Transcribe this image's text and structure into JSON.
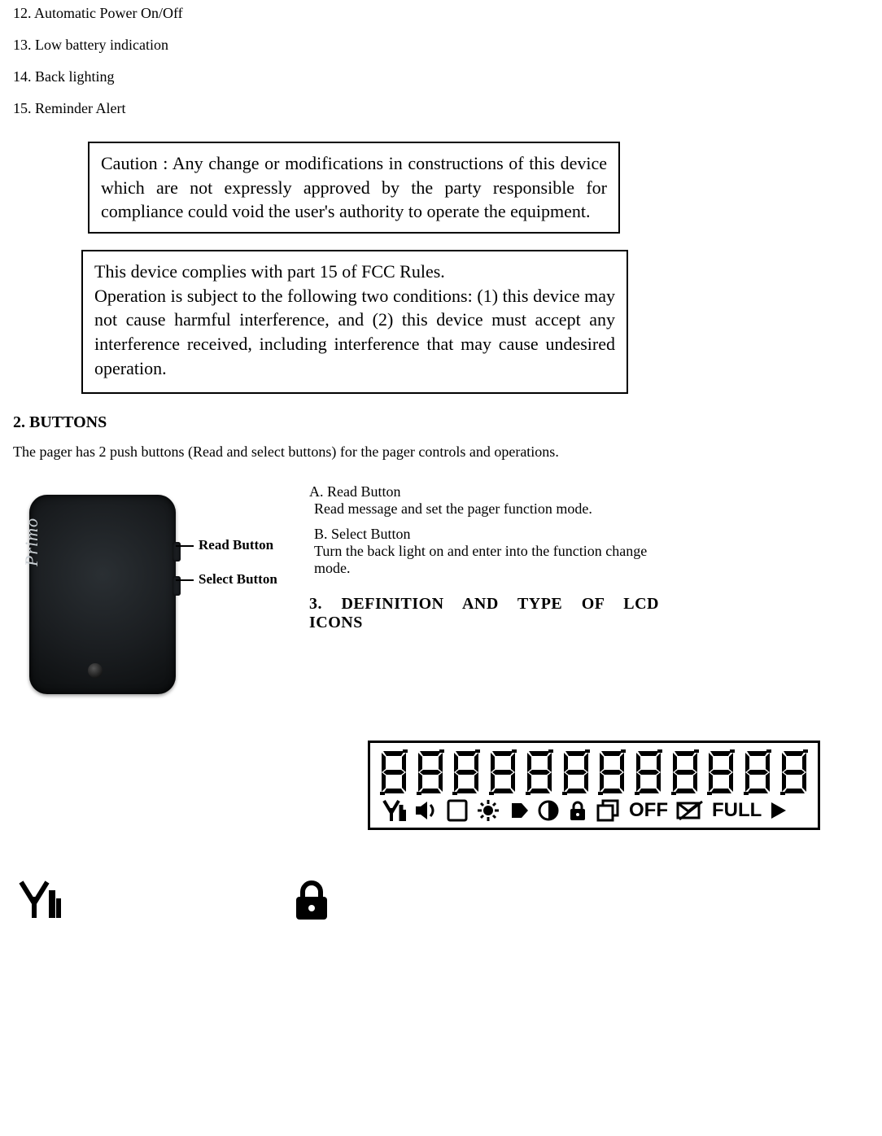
{
  "feature_list": [
    "12. Automatic Power On/Off",
    "13. Low battery indication",
    "14. Back lighting",
    "15. Reminder Alert"
  ],
  "caution_box": "Caution : Any change or modifications in constructions of this device which are not expressly approved by the party responsible for compliance could void the user's authority to operate the equipment.",
  "fcc_box_line1": "This device complies with part 15 of FCC Rules.",
  "fcc_box_line2": "Operation is subject to the following two conditions: (1) this device may not cause harmful interference, and (2) this device must accept any interference received, including interference that may cause undesired operation.",
  "section2_heading": "2. BUTTONS",
  "section2_intro": "The pager has 2 push buttons (Read and select buttons) for the pager controls and operations.",
  "pager_label_read": "Read Button",
  "pager_label_select": "Select Button",
  "pager_brand": "Primo",
  "button_a_title": "A. Read Button",
  "button_a_desc": "Read message and set the pager function mode.",
  "button_b_title": "B. Select Button",
  "button_b_desc": "Turn the back light on and enter into the function change mode.",
  "section3_heading": "3. DEFINITION AND TYPE OF LCD ICONS",
  "lcd": {
    "digit_count": 12,
    "off_text": "OFF",
    "full_text": "FULL"
  },
  "colors": {
    "text": "#000000",
    "bg": "#ffffff",
    "pager_dark": "#1a1d20",
    "pager_light": "#c9cfd4"
  }
}
